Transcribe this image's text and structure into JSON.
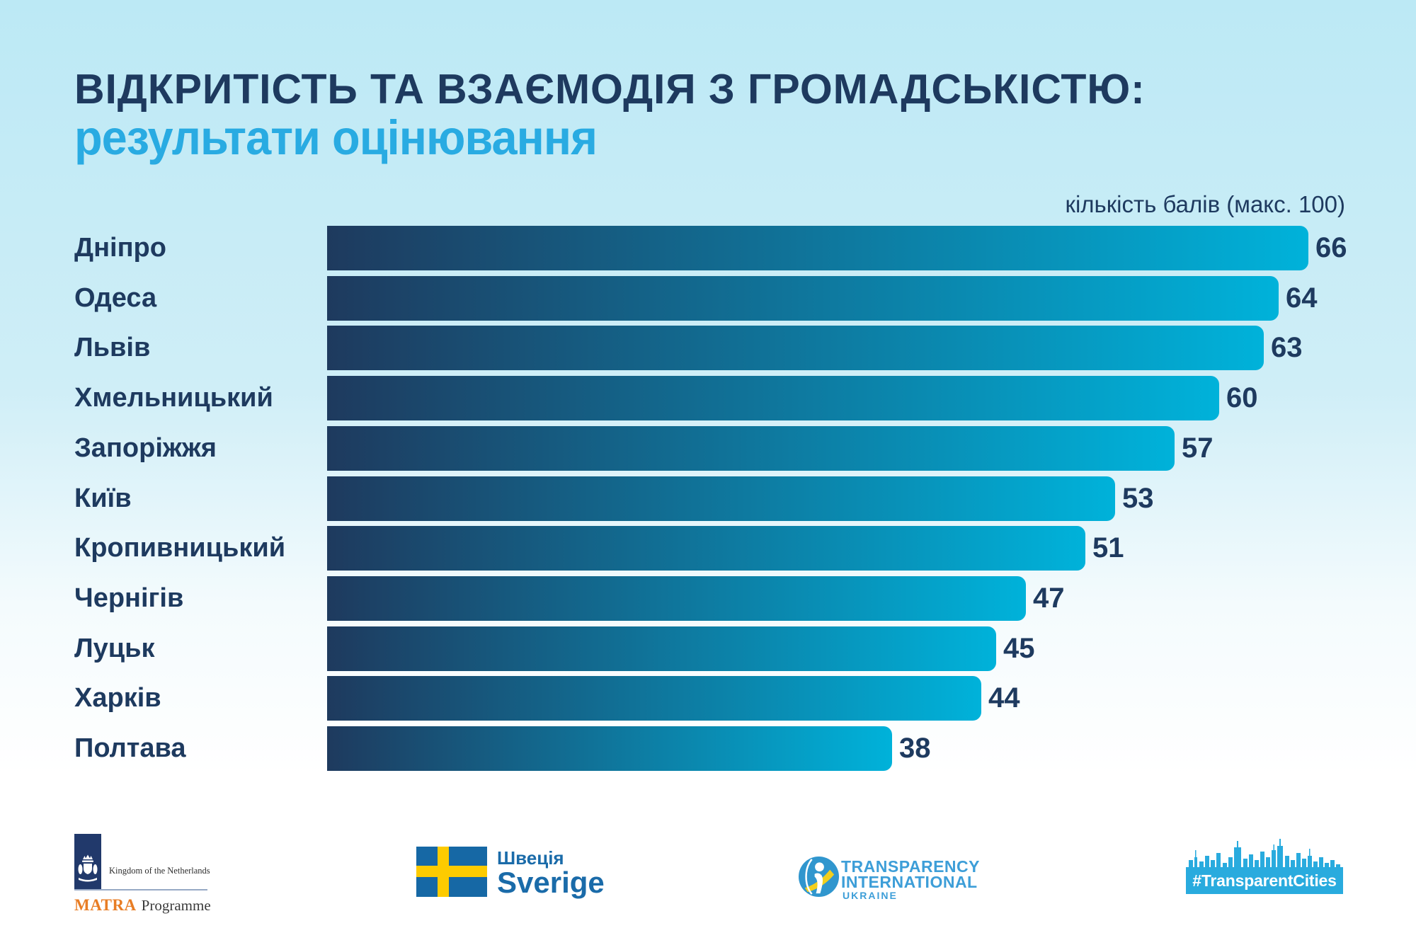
{
  "header": {
    "title": "ВІДКРИТІСТЬ ТА ВЗАЄМОДІЯ З ГРОМАДСЬКІСТЮ:",
    "subtitle": "результати оцінювання",
    "axis_note": "кількість балів (макс. 100)"
  },
  "chart_data": {
    "type": "bar",
    "orientation": "horizontal",
    "categories": [
      "Дніпро",
      "Одеса",
      "Львів",
      "Хмельницький",
      "Запоріжжя",
      "Київ",
      "Кропивницький",
      "Чернігів",
      "Луцьк",
      "Харків",
      "Полтава"
    ],
    "values": [
      66,
      64,
      63,
      60,
      57,
      53,
      51,
      47,
      45,
      44,
      38
    ],
    "xlabel": "кількість балів (макс. 100)",
    "xlim": [
      0,
      100
    ],
    "grid": false,
    "legend": false,
    "bar_gradient": [
      "#1e3a5e",
      "#00b2da"
    ]
  },
  "footer": {
    "matra": {
      "kingdom": "Kingdom of the Netherlands",
      "program_bold": "MATRA",
      "program_rest": "Programme"
    },
    "sweden": {
      "label_uk": "Швеція",
      "label_sv": "Sverige"
    },
    "ti": {
      "line1": "TRANSPARENCY",
      "line2": "INTERNATIONAL",
      "line3": "UKRAINE"
    },
    "transparent_cities": {
      "label": "#TransparentCities"
    }
  },
  "colors": {
    "navy": "#1e3a5f",
    "cyan": "#29abe2",
    "bar_start": "#1e3a5e",
    "bar_end": "#00b2da",
    "tc_blue": "#29abde"
  }
}
